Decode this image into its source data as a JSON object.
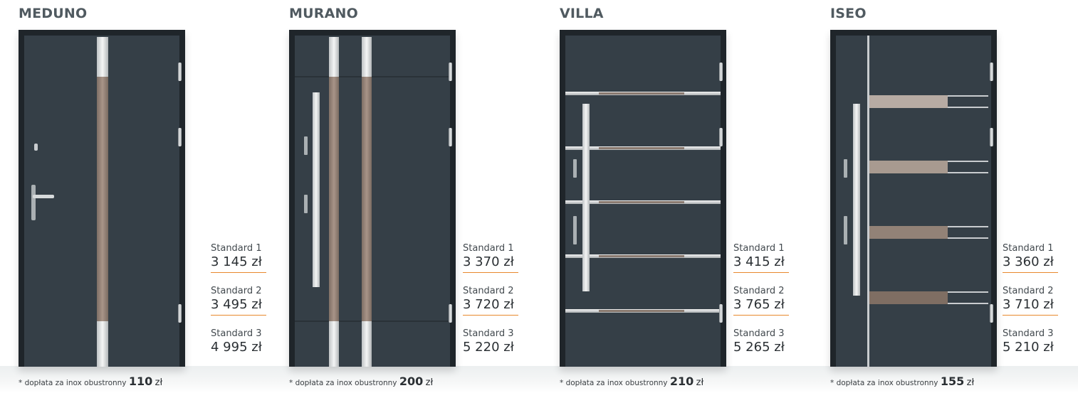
{
  "products": [
    {
      "name": "MEDUNO",
      "prices": [
        {
          "label": "Standard 1",
          "price": "3 145 zł"
        },
        {
          "label": "Standard 2",
          "price": "3 495 zł"
        },
        {
          "label": "Standard 3",
          "price": "4 995 zł"
        }
      ],
      "note": {
        "text": "* dopłata za inox obustronny",
        "amount": "110",
        "currency": "zł"
      }
    },
    {
      "name": "MURANO",
      "prices": [
        {
          "label": "Standard 1",
          "price": "3 370 zł"
        },
        {
          "label": "Standard 2",
          "price": "3 720 zł"
        },
        {
          "label": "Standard 3",
          "price": "5 220 zł"
        }
      ],
      "note": {
        "text": "* dopłata za inox obustronny",
        "amount": "200",
        "currency": "zł"
      }
    },
    {
      "name": "VILLA",
      "prices": [
        {
          "label": "Standard 1",
          "price": "3 415 zł"
        },
        {
          "label": "Standard 2",
          "price": "3 765 zł"
        },
        {
          "label": "Standard 3",
          "price": "5 265 zł"
        }
      ],
      "note": {
        "text": "* dopłata za inox obustronny",
        "amount": "210",
        "currency": "zł"
      }
    },
    {
      "name": "ISEO",
      "prices": [
        {
          "label": "Standard 1",
          "price": "3 360 zł"
        },
        {
          "label": "Standard 2",
          "price": "3 710 zł"
        },
        {
          "label": "Standard 3",
          "price": "5 210 zł"
        }
      ],
      "note": {
        "text": "* dopłata za inox obustronny",
        "amount": "155",
        "currency": "zł"
      }
    }
  ],
  "colors": {
    "door_panel": "#353f47",
    "door_frame": "#1f252a",
    "accent_line": "#e8882d",
    "title_text": "#505a60"
  }
}
